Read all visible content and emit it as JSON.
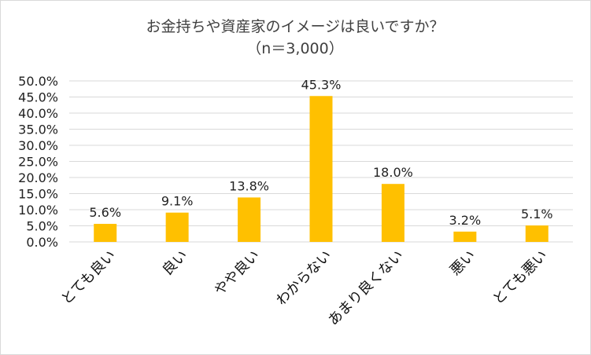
{
  "chart_data": {
    "type": "bar",
    "title": "お金持ちや資産家のイメージは良いですか？",
    "subtitle": "（n＝3,000）",
    "categories": [
      "とても良い",
      "良い",
      "やや良い",
      "わからない",
      "あまり良くない",
      "悪い",
      "とても悪い"
    ],
    "values": [
      5.6,
      9.1,
      13.8,
      45.3,
      18.0,
      3.2,
      5.1
    ],
    "data_labels": [
      "5.6%",
      "9.1%",
      "13.8%",
      "45.3%",
      "18.0%",
      "3.2%",
      "5.1%"
    ],
    "ylim": [
      0,
      50
    ],
    "y_ticks": [
      0,
      5,
      10,
      15,
      20,
      25,
      30,
      35,
      40,
      45,
      50
    ],
    "y_tick_labels": [
      "0.0%",
      "5.0%",
      "10.0%",
      "15.0%",
      "20.0%",
      "25.0%",
      "30.0%",
      "35.0%",
      "40.0%",
      "45.0%",
      "50.0%"
    ],
    "grid": true,
    "legend": "none",
    "bar_color": "#FFC000",
    "grid_color": "#d9d9d9"
  }
}
